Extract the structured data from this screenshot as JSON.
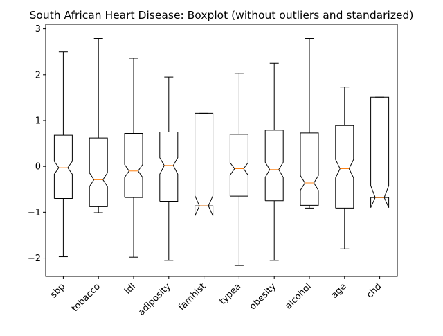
{
  "chart_data": {
    "type": "boxplot",
    "title": "South African Heart Disease: Boxplot (without outliers and standarized)",
    "xlabel": "",
    "ylabel": "",
    "ylim": [
      -2.4,
      3.1
    ],
    "yticks": [
      -2,
      -1,
      0,
      1,
      2,
      3
    ],
    "ytick_labels": [
      "−2",
      "−1",
      "0",
      "1",
      "2",
      "3"
    ],
    "notched": true,
    "grid": false,
    "colors": {
      "box": "#000000",
      "median": "#ff7f0e"
    },
    "categories": [
      "sbp",
      "tobacco",
      "ldl",
      "adiposity",
      "famhist",
      "typea",
      "obesity",
      "alcohol",
      "age",
      "chd"
    ],
    "boxes": [
      {
        "whislo": -1.97,
        "q1": -0.7,
        "med": -0.03,
        "q3": 0.68,
        "whishi": 2.5,
        "cilo": -0.17,
        "cihi": 0.11
      },
      {
        "whislo": -1.01,
        "q1": -0.88,
        "med": -0.29,
        "q3": 0.62,
        "whishi": 2.79,
        "cilo": -0.44,
        "cihi": -0.14
      },
      {
        "whislo": -1.98,
        "q1": -0.68,
        "med": -0.1,
        "q3": 0.72,
        "whishi": 2.36,
        "cilo": -0.24,
        "cihi": 0.04
      },
      {
        "whislo": -2.05,
        "q1": -0.76,
        "med": 0.02,
        "q3": 0.75,
        "whishi": 1.95,
        "cilo": -0.17,
        "cihi": 0.19
      },
      {
        "whislo": -0.86,
        "q1": -0.86,
        "med": -0.86,
        "q3": 1.16,
        "whishi": 1.16,
        "cilo": -1.08,
        "cihi": -0.64
      },
      {
        "whislo": -2.16,
        "q1": -0.65,
        "med": -0.05,
        "q3": 0.7,
        "whishi": 2.03,
        "cilo": -0.19,
        "cihi": 0.08
      },
      {
        "whislo": -2.05,
        "q1": -0.75,
        "med": -0.07,
        "q3": 0.79,
        "whishi": 2.25,
        "cilo": -0.24,
        "cihi": 0.09
      },
      {
        "whislo": -0.91,
        "q1": -0.85,
        "med": -0.36,
        "q3": 0.73,
        "whishi": 2.79,
        "cilo": -0.52,
        "cihi": -0.2
      },
      {
        "whislo": -1.8,
        "q1": -0.91,
        "med": -0.05,
        "q3": 0.89,
        "whishi": 1.73,
        "cilo": -0.25,
        "cihi": 0.15
      },
      {
        "whislo": -0.68,
        "q1": -0.68,
        "med": -0.68,
        "q3": 1.51,
        "whishi": 1.51,
        "cilo": -0.9,
        "cihi": -0.42
      }
    ]
  }
}
